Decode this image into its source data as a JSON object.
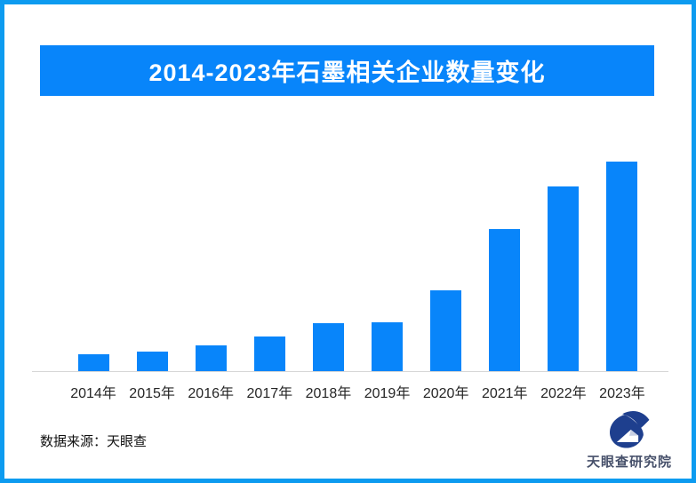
{
  "header": {
    "title": "2014-2023年石墨相关企业数量变化"
  },
  "chart_data": {
    "type": "bar",
    "title": "2014-2023年石墨相关企业数量变化",
    "categories": [
      "2014年",
      "2015年",
      "2016年",
      "2017年",
      "2018年",
      "2019年",
      "2020年",
      "2021年",
      "2022年",
      "2023年"
    ],
    "values": [
      19,
      22,
      29,
      39,
      54,
      55,
      91,
      160,
      208,
      236
    ],
    "value_unit": "relative (chart displays no y-axis or data labels; values estimated from bar heights)",
    "xlabel": "",
    "ylabel": "",
    "ylim": [
      0,
      250
    ],
    "grid": false,
    "y_axis_visible": false,
    "legend": "none",
    "bar_color": "#0885fa"
  },
  "footer": {
    "source_label": "数据来源：天眼查"
  },
  "logo": {
    "icon": "tianyancha-logo-icon",
    "text": "天眼查研究院"
  },
  "colors": {
    "primary_blue": "#0885fa",
    "frame_border": "#0d9bf0",
    "axis_line": "#d6d6d6",
    "label_text": "#262626",
    "source_text": "#111111",
    "logo_navy": "#1e3f8e",
    "logo_text": "#46506a"
  }
}
